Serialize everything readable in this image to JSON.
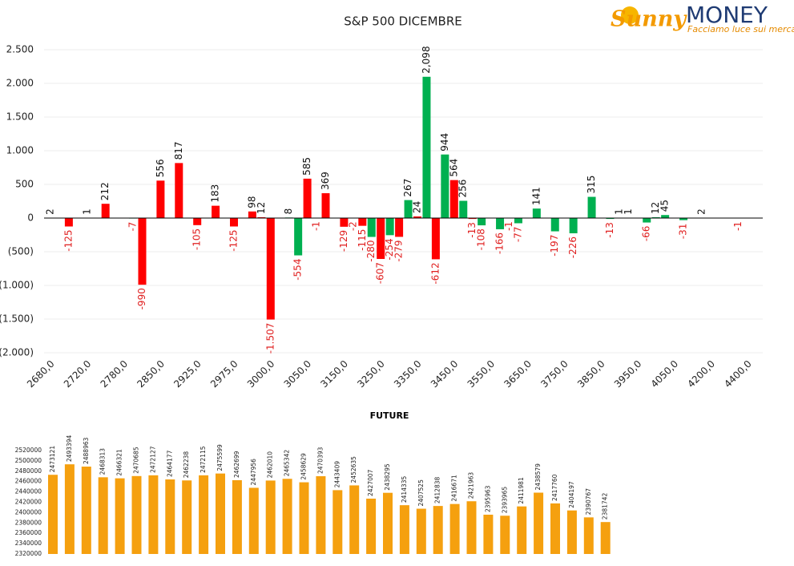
{
  "logo": {
    "brand": "Sunny",
    "name": "MONEY",
    "tagline": "Facciamo luce sui mercati"
  },
  "chart_data": [
    {
      "type": "bar",
      "title": "S&P 500 DICEMBRE",
      "categories": [
        "2680,0",
        null,
        null,
        null,
        "2720,0",
        null,
        null,
        null,
        "2780,0",
        null,
        null,
        null,
        "2850,0",
        null,
        null,
        null,
        "2925,0",
        null,
        null,
        null,
        "2975,0",
        null,
        null,
        null,
        "3000,0",
        null,
        null,
        null,
        "3050,0",
        null,
        null,
        null,
        "3150,0",
        null,
        null,
        null,
        "3250,0",
        null,
        null,
        null,
        "3350,0",
        null,
        null,
        null,
        "3450,0",
        null,
        null,
        null,
        "3550,0",
        null,
        null,
        null,
        "3650,0",
        null,
        null,
        null,
        "3750,0",
        null,
        null,
        null,
        "3850,0",
        null,
        null,
        null,
        "3950,0",
        null,
        null,
        null,
        "4050,0",
        null,
        null,
        null,
        "4200,0",
        null,
        null,
        null,
        "4400,0"
      ],
      "values": [
        2,
        null,
        -125,
        null,
        1,
        null,
        212,
        null,
        null,
        -7,
        -990,
        null,
        556,
        null,
        817,
        null,
        -105,
        null,
        183,
        null,
        -125,
        null,
        98,
        12,
        -1507,
        null,
        8,
        -554,
        585,
        -1,
        369,
        null,
        -129,
        -2,
        -115,
        -280,
        -607,
        -254,
        -279,
        267,
        24,
        2098,
        -612,
        944,
        564,
        256,
        -13,
        -108,
        null,
        -166,
        -1,
        -77,
        null,
        141,
        null,
        -197,
        null,
        -226,
        null,
        315,
        null,
        -13,
        1,
        1,
        null,
        -66,
        12,
        45,
        null,
        -31,
        null,
        2,
        null,
        null,
        null,
        -1,
        null
      ],
      "value_labels": [
        null,
        null,
        null,
        null,
        null,
        null,
        null,
        null,
        null,
        null,
        null,
        null,
        null,
        null,
        null,
        null,
        null,
        null,
        null,
        null,
        null,
        null,
        null,
        null,
        "-1.507",
        null,
        null,
        null,
        null,
        null,
        null,
        null,
        null,
        null,
        null,
        null,
        null,
        null,
        null,
        null,
        null,
        "2,098",
        null,
        null,
        null,
        null,
        null,
        null,
        null,
        null,
        null,
        null,
        null,
        null,
        null,
        null,
        null,
        null,
        null,
        null,
        null,
        null,
        null,
        null,
        null,
        null,
        null,
        null,
        null,
        null,
        null,
        null,
        null,
        null,
        null,
        null,
        null
      ],
      "colors": [
        "#00b050",
        null,
        "#ff0000",
        null,
        "#00b050",
        null,
        "#ff0000",
        null,
        null,
        "#00b050",
        "#ff0000",
        null,
        "#ff0000",
        null,
        "#ff0000",
        null,
        "#ff0000",
        null,
        "#ff0000",
        null,
        "#ff0000",
        null,
        "#ff0000",
        "#ff0000",
        "#ff0000",
        null,
        "#00b050",
        "#00b050",
        "#ff0000",
        "#00b050",
        "#ff0000",
        null,
        "#ff0000",
        "#ff0000",
        "#ff0000",
        "#00b050",
        "#ff0000",
        "#00b050",
        "#ff0000",
        "#00b050",
        "#ff0000",
        "#00b050",
        "#ff0000",
        "#00b050",
        "#ff0000",
        "#00b050",
        "#ff0000",
        "#00b050",
        null,
        "#00b050",
        "#ff0000",
        "#00b050",
        null,
        "#00b050",
        null,
        "#00b050",
        null,
        "#00b050",
        null,
        "#00b050",
        null,
        "#00b050",
        "#00b050",
        "#00b050",
        null,
        "#00b050",
        "#00b050",
        "#00b050",
        null,
        "#00b050",
        null,
        "#00b050",
        null,
        null,
        null,
        "#00b050",
        null
      ],
      "ylim": [
        -2000,
        2500
      ],
      "yticks": [
        {
          "value": -2000,
          "label": "(2.000)"
        },
        {
          "value": -1500,
          "label": "(1.500)"
        },
        {
          "value": -1000,
          "label": "(1.000)"
        },
        {
          "value": -500,
          "label": "(500)"
        },
        0,
        500,
        {
          "value": 1000,
          "label": "1.000"
        },
        {
          "value": 1500,
          "label": "1.500"
        },
        {
          "value": 2000,
          "label": "2.000"
        },
        {
          "value": 2500,
          "label": "2.500"
        }
      ],
      "grid": true
    },
    {
      "type": "bar",
      "title": "FUTURE",
      "color": "#f5a00f",
      "values": [
        2473121,
        2493394,
        2488963,
        2468313,
        2466321,
        2470685,
        2472127,
        2464177,
        2462238,
        2472115,
        2475599,
        2462699,
        2447956,
        2462010,
        2465342,
        2458629,
        2470393,
        2443409,
        2452635,
        2427007,
        2438295,
        2414335,
        2407525,
        2412838,
        2416671,
        2421963,
        2395963,
        2393965,
        2411981,
        2438579,
        2417760,
        2404197,
        2390767,
        2381742
      ],
      "ylim": [
        2320000,
        2520000
      ],
      "yticks": [
        2320000,
        2340000,
        2360000,
        2380000,
        2400000,
        2420000,
        2440000,
        2460000,
        2480000,
        2500000,
        2520000
      ],
      "grid": false
    }
  ]
}
